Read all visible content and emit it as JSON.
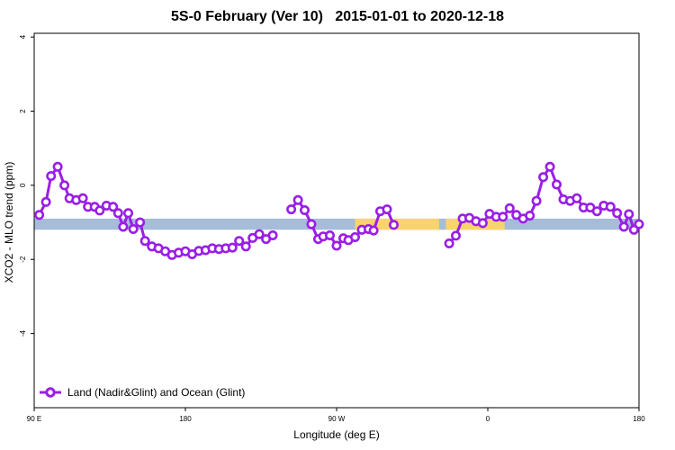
{
  "title": {
    "main": "5S-0 February (Ver 10)",
    "dates": "2015-01-01 to 2020-12-18"
  },
  "chart_data": {
    "type": "line",
    "xlabel": "Longitude (deg E)",
    "ylabel": "XCO2 - MLO trend (ppm)",
    "xlim": [
      90,
      450
    ],
    "ylim": [
      -6,
      4.1
    ],
    "x_ticks": [
      {
        "value": 90,
        "label": "90 E"
      },
      {
        "value": 180,
        "label": "180"
      },
      {
        "value": 270,
        "label": "90 W"
      },
      {
        "value": 360,
        "label": "0"
      },
      {
        "value": 450,
        "label": "180"
      }
    ],
    "y_ticks": [
      {
        "value": 4,
        "label": "4"
      },
      {
        "value": 2,
        "label": "2"
      },
      {
        "value": 0,
        "label": "0"
      },
      {
        "value": -2,
        "label": "-2"
      },
      {
        "value": -4,
        "label": "-4"
      }
    ],
    "grid": false,
    "legend": {
      "position": "bottom-left"
    },
    "land_ocean_bar": {
      "y_range": [
        -1.2,
        -0.9
      ],
      "ocean_color": "#a6bcd9",
      "land_color": "#f9d46b",
      "land_segments": [
        [
          281,
          331
        ],
        [
          335,
          370
        ]
      ]
    },
    "series": [
      {
        "name": "Land (Nadir&Glint) and Ocean (Glint)",
        "color": "#9a1ee6",
        "segments": [
          [
            [
              93,
              -0.8
            ],
            [
              97,
              -0.45
            ],
            [
              100,
              0.25
            ],
            [
              104,
              0.5
            ],
            [
              108,
              0.0
            ],
            [
              111,
              -0.35
            ],
            [
              115,
              -0.4
            ],
            [
              119,
              -0.35
            ],
            [
              122,
              -0.58
            ],
            [
              126,
              -0.58
            ],
            [
              129,
              -0.68
            ],
            [
              133,
              -0.55
            ],
            [
              137,
              -0.58
            ],
            [
              140,
              -0.75
            ],
            [
              143,
              -1.12
            ],
            [
              146,
              -0.75
            ],
            [
              149,
              -1.18
            ],
            [
              153,
              -1.0
            ],
            [
              156,
              -1.5
            ],
            [
              160,
              -1.65
            ],
            [
              164,
              -1.7
            ],
            [
              168,
              -1.78
            ],
            [
              172,
              -1.88
            ],
            [
              176,
              -1.82
            ],
            [
              180,
              -1.78
            ],
            [
              184,
              -1.86
            ],
            [
              188,
              -1.77
            ],
            [
              192,
              -1.75
            ],
            [
              196,
              -1.7
            ],
            [
              200,
              -1.72
            ],
            [
              204,
              -1.7
            ],
            [
              208,
              -1.68
            ],
            [
              212,
              -1.5
            ],
            [
              216,
              -1.65
            ],
            [
              220,
              -1.42
            ],
            [
              224,
              -1.32
            ],
            [
              228,
              -1.45
            ],
            [
              232,
              -1.35
            ]
          ],
          [
            [
              243,
              -0.65
            ],
            [
              247,
              -0.4
            ],
            [
              251,
              -0.67
            ],
            [
              255,
              -1.05
            ],
            [
              259,
              -1.45
            ],
            [
              262,
              -1.38
            ],
            [
              266,
              -1.35
            ],
            [
              270,
              -1.63
            ],
            [
              274,
              -1.43
            ],
            [
              277,
              -1.48
            ],
            [
              281,
              -1.4
            ],
            [
              285,
              -1.2
            ],
            [
              289,
              -1.18
            ],
            [
              292,
              -1.22
            ],
            [
              296,
              -0.7
            ],
            [
              300,
              -0.65
            ],
            [
              304,
              -1.07
            ]
          ],
          [
            [
              337,
              -1.57
            ],
            [
              341,
              -1.36
            ],
            [
              345,
              -0.9
            ],
            [
              349,
              -0.88
            ],
            [
              353,
              -0.97
            ],
            [
              357,
              -1.02
            ],
            [
              361,
              -0.77
            ],
            [
              365,
              -0.85
            ],
            [
              369,
              -0.85
            ],
            [
              373,
              -0.62
            ],
            [
              377,
              -0.8
            ],
            [
              381,
              -0.9
            ],
            [
              385,
              -0.82
            ],
            [
              389,
              -0.42
            ],
            [
              393,
              0.22
            ],
            [
              397,
              0.5
            ],
            [
              401,
              0.02
            ],
            [
              405,
              -0.38
            ],
            [
              409,
              -0.42
            ],
            [
              413,
              -0.35
            ],
            [
              417,
              -0.6
            ],
            [
              421,
              -0.6
            ],
            [
              425,
              -0.7
            ],
            [
              429,
              -0.55
            ],
            [
              433,
              -0.58
            ],
            [
              437,
              -0.75
            ],
            [
              441,
              -1.12
            ],
            [
              444,
              -0.78
            ],
            [
              447,
              -1.2
            ],
            [
              450,
              -1.05
            ]
          ]
        ]
      }
    ]
  }
}
